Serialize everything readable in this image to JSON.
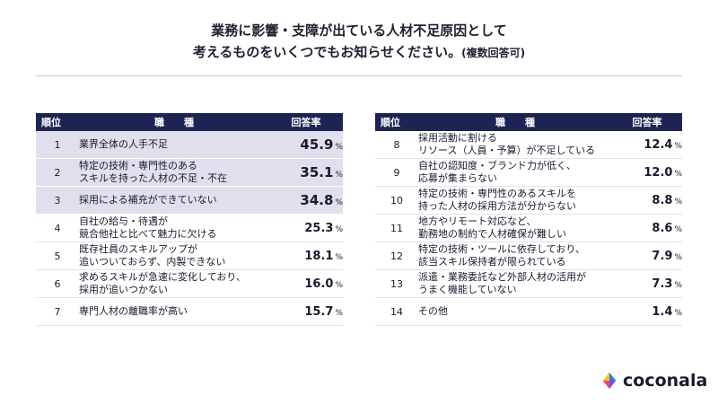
{
  "title": {
    "line1": "業務に影響・支障が出ている人材不足原因として",
    "line2": "考えるものをいくつでもお知らせください。",
    "note": "(複数回答可)"
  },
  "table": {
    "header": {
      "rank": "順位",
      "name": "職　　種",
      "rate": "回答率"
    },
    "unit": "%",
    "left_rows": [
      {
        "rank": "1",
        "name": [
          "業界全体の人手不足"
        ],
        "rate": "45.9"
      },
      {
        "rank": "2",
        "name": [
          "特定の技術・専門性のある",
          "スキルを持った人材の不足・不在"
        ],
        "rate": "35.1"
      },
      {
        "rank": "3",
        "name": [
          "採用による補充ができていない"
        ],
        "rate": "34.8"
      },
      {
        "rank": "4",
        "name": [
          "自社の給与・待遇が",
          "競合他社と比べて魅力に欠ける"
        ],
        "rate": "25.3"
      },
      {
        "rank": "5",
        "name": [
          "既存社員のスキルアップが",
          "追いついておらず、内製できない"
        ],
        "rate": "18.1"
      },
      {
        "rank": "6",
        "name": [
          "求めるスキルが急速に変化しており、",
          "採用が追いつかない"
        ],
        "rate": "16.0"
      },
      {
        "rank": "7",
        "name": [
          "専門人材の離職率が高い"
        ],
        "rate": "15.7"
      }
    ],
    "right_rows": [
      {
        "rank": "8",
        "name": [
          "採用活動に割ける",
          "リソース（人員・予算）が不足している"
        ],
        "rate": "12.4"
      },
      {
        "rank": "9",
        "name": [
          "自社の認知度・ブランド力が低く、",
          "応募が集まらない"
        ],
        "rate": "12.0"
      },
      {
        "rank": "10",
        "name": [
          "特定の技術・専門性のあるスキルを",
          "持った人材の採用方法が分からない"
        ],
        "rate": "8.8"
      },
      {
        "rank": "11",
        "name": [
          "地方やリモート対応など、",
          "勤務地の制約で人材確保が難しい"
        ],
        "rate": "8.6"
      },
      {
        "rank": "12",
        "name": [
          "特定の技術・ツールに依存しており、",
          "該当スキル保持者が限られている"
        ],
        "rate": "7.9"
      },
      {
        "rank": "13",
        "name": [
          "派遣・業務委託など外部人材の活用が",
          "うまく機能していない"
        ],
        "rate": "7.3"
      },
      {
        "rank": "14",
        "name": [
          "その他"
        ],
        "rate": "1.4"
      }
    ]
  },
  "brand": {
    "name": "coconala",
    "colors": {
      "header": "#1d2454",
      "highlight": "#dfe0ec",
      "logo_yellow": "#f5c518",
      "logo_blue": "#2b7de9",
      "logo_pink": "#e8457c"
    }
  }
}
